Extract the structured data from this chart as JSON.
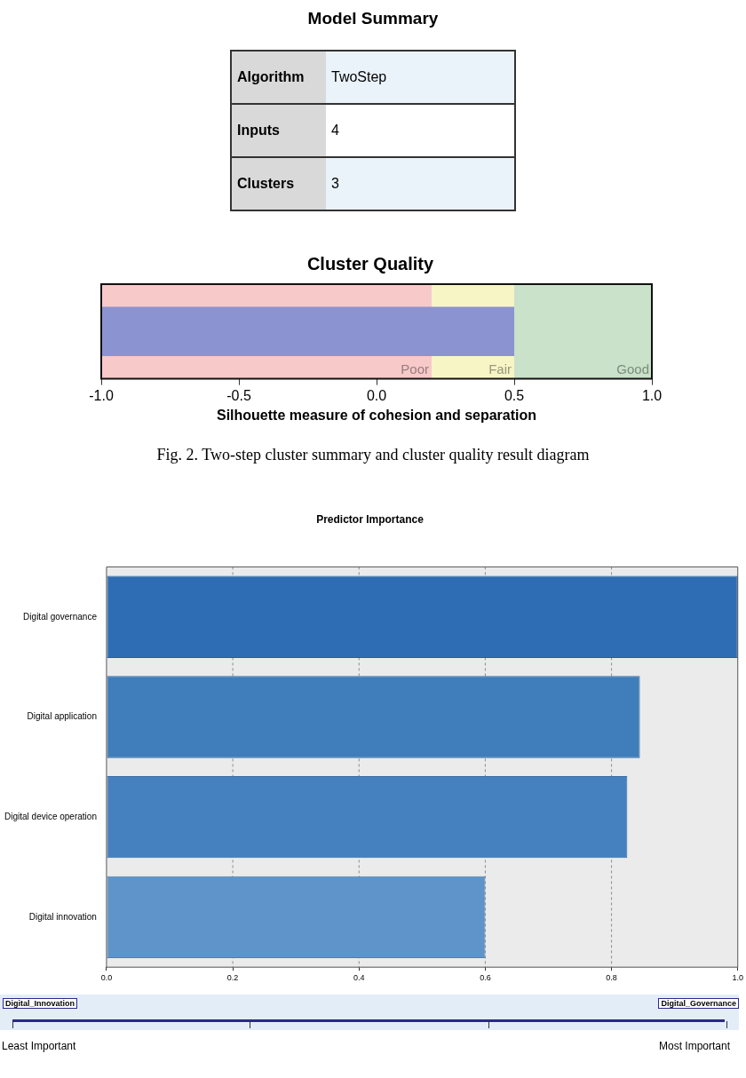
{
  "chart_data": [
    {
      "type": "other",
      "title": "Model Summary",
      "annotations": [
        "Algorithm",
        "TwoStep",
        "Inputs",
        "4",
        "Clusters",
        "3"
      ]
    },
    {
      "type": "bar",
      "orientation": "horizontal",
      "title": "Cluster Quality",
      "xlabel": "Silhouette measure of cohesion and separation",
      "categories": [
        null
      ],
      "base": [
        -1
      ],
      "values": [
        1.5
      ],
      "color": "#8b93d1",
      "xlim": [
        -1,
        1
      ],
      "xticks": [
        {
          "value": -1,
          "label": "-1.0"
        },
        {
          "value": -0.5,
          "label": "-0.5"
        },
        {
          "value": 0,
          "label": "0.0"
        },
        {
          "value": 0.5,
          "label": "0.5"
        },
        {
          "value": 1,
          "label": "1.0"
        }
      ],
      "bands": [
        {
          "axis": "x",
          "from": -1,
          "to": 0.2,
          "label": "Poor",
          "color": "#f7c9c9"
        },
        {
          "axis": "x",
          "from": 0.2,
          "to": 0.5,
          "label": "Fair",
          "color": "#f7f5c6"
        },
        {
          "axis": "x",
          "from": 0.5,
          "to": 1,
          "label": "Good",
          "color": "#c9e2c9"
        }
      ],
      "annotations": [
        "Fig. 2.  Two-step cluster summary and cluster quality result diagram"
      ]
    },
    {
      "type": "bar",
      "orientation": "horizontal",
      "title": "Predictor Importance",
      "categories": [
        "Digital governance",
        "Digital application",
        "Digital device operation",
        "Digital innovation"
      ],
      "values": [
        1.0,
        0.845,
        0.825,
        0.6
      ],
      "colors": [
        "#2e6db3",
        "#3f7dbb",
        "#4580bf",
        "#5e94c9"
      ],
      "xlim": [
        0,
        1
      ],
      "xticks": [
        {
          "value": 0,
          "label": "0.0"
        },
        {
          "value": 0.2,
          "label": "0.2"
        },
        {
          "value": 0.4,
          "label": "0.4"
        },
        {
          "value": 0.6,
          "label": "0.6"
        },
        {
          "value": 0.8,
          "label": "0.8"
        },
        {
          "value": 1,
          "label": "1.0"
        }
      ],
      "grid": "x",
      "line_style": "dashed",
      "annotations": [
        "Digital_Innovation",
        "Digital_Governance",
        "Least Important",
        "Most Important"
      ]
    }
  ]
}
